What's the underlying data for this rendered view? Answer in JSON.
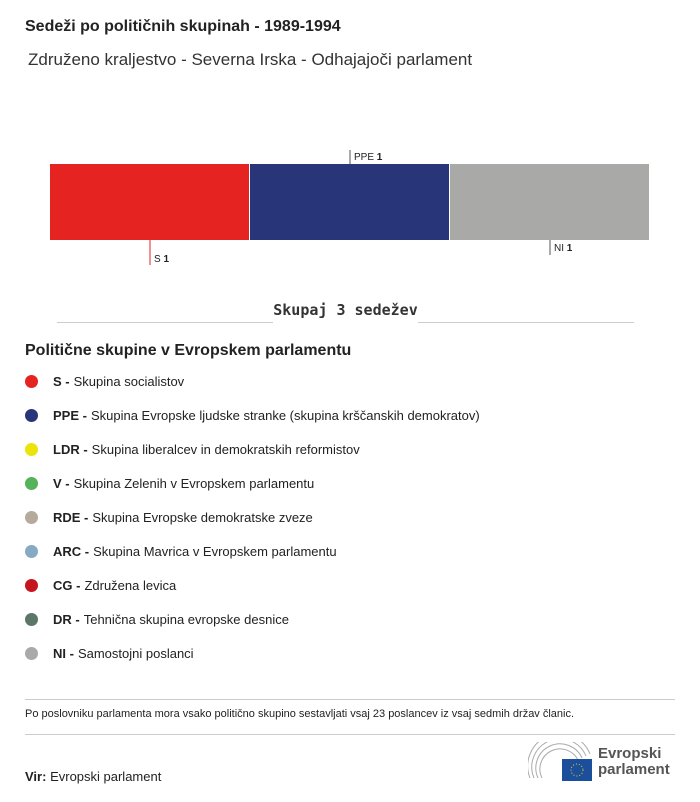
{
  "title": "Sedeži po političnih skupinah - 1989-1994",
  "subtitle": "Združeno kraljestvo - Severna Irska - Odhajajoči parlament",
  "chart_data": {
    "type": "bar",
    "orientation": "stacked-horizontal",
    "categories": [
      "S",
      "PPE",
      "NI"
    ],
    "values": [
      1,
      1,
      1
    ],
    "colors": [
      "#e52421",
      "#283679",
      "#a9a9a8"
    ],
    "total_label": "Skupaj 3 sedežev"
  },
  "legend": {
    "title": "Politične skupine v Evropskem parlamentu",
    "items": [
      {
        "abbr": "S -",
        "name": "Skupina socialistov",
        "color": "#e52421"
      },
      {
        "abbr": "PPE -",
        "name": "Skupina Evropske ljudske stranke (skupina krščanskih demokratov)",
        "color": "#283679"
      },
      {
        "abbr": "LDR -",
        "name": "Skupina liberalcev in demokratskih reformistov",
        "color": "#ece30a"
      },
      {
        "abbr": "V -",
        "name": "Skupina Zelenih v Evropskem parlamentu",
        "color": "#56b25a"
      },
      {
        "abbr": "RDE -",
        "name": "Skupina Evropske demokratske zveze",
        "color": "#b4ab9c"
      },
      {
        "abbr": "ARC -",
        "name": "Skupina Mavrica v Evropskem parlamentu",
        "color": "#86a9c4"
      },
      {
        "abbr": "CG -",
        "name": "Združena levica",
        "color": "#c4161c"
      },
      {
        "abbr": "DR -",
        "name": "Tehnična skupina evropske desnice",
        "color": "#5c7767"
      },
      {
        "abbr": "NI -",
        "name": "Samostojni poslanci",
        "color": "#a9a9a8"
      }
    ]
  },
  "note": "Po poslovniku parlamenta mora vsako politično skupino sestavljati vsaj 23 poslancev iz vsaj sedmih držav članic.",
  "source": {
    "label": "Vir:",
    "value": "Evropski parlament"
  },
  "logo": {
    "line1": "Evropski",
    "line2": "parlament"
  }
}
